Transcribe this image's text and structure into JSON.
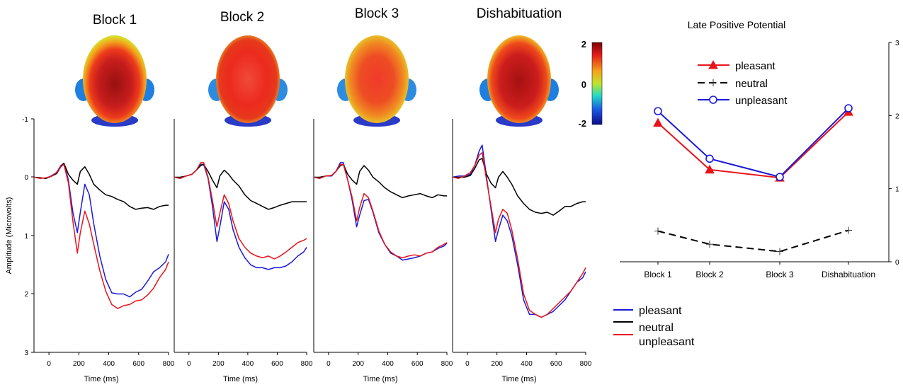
{
  "colors": {
    "blue": "#1a1ad8",
    "black": "#000000",
    "red": "#e8141a",
    "axis": "#000000"
  },
  "colorbar": {
    "ticks": [
      "2",
      "0",
      "-2"
    ]
  },
  "erp": {
    "titles": [
      "Block 1",
      "Block 2",
      "Block 3",
      "Dishabituation"
    ],
    "ylabel": "Amplitude (Microvolts)",
    "xlabel": "Time (ms)",
    "yticks": [
      "-1",
      "0",
      "1",
      "2",
      "3"
    ],
    "xticks": [
      "0",
      "200",
      "400",
      "600",
      "800"
    ],
    "legend": [
      "pleasant",
      "neutral",
      "unpleasant"
    ]
  },
  "chart_data": [
    {
      "type": "line",
      "title": "Block 1",
      "xlabel": "Time (ms)",
      "ylabel": "Amplitude (Microvolts)",
      "xlim": [
        -100,
        800
      ],
      "ylim": [
        -1,
        3
      ],
      "y_inverted": true,
      "series": [
        {
          "name": "pleasant",
          "x": [
            -100,
            -60,
            -20,
            20,
            50,
            80,
            100,
            130,
            160,
            190,
            210,
            240,
            270,
            300,
            340,
            380,
            420,
            460,
            500,
            540,
            580,
            620,
            660,
            700,
            740,
            780,
            800
          ],
          "y": [
            0,
            0.01,
            0.02,
            -0.03,
            -0.08,
            -0.2,
            -0.24,
            0.05,
            0.6,
            0.95,
            0.6,
            0.12,
            0.3,
            0.8,
            1.35,
            1.75,
            1.98,
            2.0,
            2.0,
            2.05,
            1.97,
            1.92,
            1.78,
            1.62,
            1.55,
            1.45,
            1.32
          ]
        },
        {
          "name": "neutral",
          "x": [
            -100,
            -60,
            -20,
            20,
            50,
            80,
            100,
            130,
            160,
            190,
            210,
            240,
            270,
            300,
            340,
            380,
            420,
            460,
            500,
            540,
            580,
            620,
            660,
            700,
            740,
            780,
            800
          ],
          "y": [
            0,
            0.01,
            0.02,
            -0.02,
            -0.06,
            -0.18,
            -0.24,
            -0.05,
            0.05,
            0.12,
            -0.1,
            -0.18,
            -0.05,
            0.12,
            0.22,
            0.3,
            0.33,
            0.38,
            0.42,
            0.5,
            0.55,
            0.53,
            0.52,
            0.55,
            0.5,
            0.48,
            0.48
          ]
        },
        {
          "name": "unpleasant",
          "x": [
            -100,
            -60,
            -20,
            20,
            50,
            80,
            100,
            130,
            160,
            190,
            210,
            240,
            270,
            300,
            340,
            380,
            420,
            460,
            500,
            540,
            580,
            620,
            660,
            700,
            740,
            780,
            800
          ],
          "y": [
            0,
            0.02,
            0.01,
            -0.02,
            -0.08,
            -0.18,
            -0.22,
            0.1,
            0.75,
            1.3,
            0.95,
            0.58,
            0.8,
            1.15,
            1.6,
            1.95,
            2.18,
            2.25,
            2.2,
            2.18,
            2.12,
            2.1,
            2.02,
            1.9,
            1.72,
            1.58,
            1.45
          ]
        }
      ]
    },
    {
      "type": "line",
      "title": "Block 2",
      "xlabel": "Time (ms)",
      "xlim": [
        -100,
        800
      ],
      "ylim": [
        -1,
        3
      ],
      "y_inverted": true,
      "series": [
        {
          "name": "pleasant",
          "x": [
            -100,
            -60,
            -20,
            20,
            50,
            80,
            100,
            130,
            160,
            190,
            210,
            240,
            270,
            300,
            340,
            380,
            420,
            460,
            500,
            540,
            580,
            620,
            660,
            700,
            740,
            780,
            800
          ],
          "y": [
            0,
            0.02,
            -0.02,
            -0.05,
            -0.12,
            -0.22,
            -0.22,
            0.02,
            0.5,
            1.1,
            0.85,
            0.42,
            0.55,
            0.9,
            1.2,
            1.38,
            1.5,
            1.55,
            1.55,
            1.58,
            1.55,
            1.55,
            1.52,
            1.45,
            1.35,
            1.28,
            1.2
          ]
        },
        {
          "name": "neutral",
          "x": [
            -100,
            -60,
            -20,
            20,
            50,
            80,
            100,
            130,
            160,
            190,
            210,
            240,
            270,
            300,
            340,
            380,
            420,
            460,
            500,
            540,
            580,
            620,
            660,
            700,
            740,
            780,
            800
          ],
          "y": [
            0,
            0,
            -0.02,
            -0.05,
            -0.12,
            -0.2,
            -0.22,
            -0.1,
            0.05,
            0.18,
            -0.02,
            -0.12,
            -0.05,
            0.05,
            0.15,
            0.3,
            0.4,
            0.45,
            0.5,
            0.55,
            0.52,
            0.48,
            0.45,
            0.42,
            0.42,
            0.42,
            0.42
          ]
        },
        {
          "name": "unpleasant",
          "x": [
            -100,
            -60,
            -20,
            20,
            50,
            80,
            100,
            130,
            160,
            190,
            210,
            240,
            270,
            300,
            340,
            380,
            420,
            460,
            500,
            540,
            580,
            620,
            660,
            700,
            740,
            780,
            800
          ],
          "y": [
            0,
            0.02,
            -0.02,
            -0.05,
            -0.12,
            -0.25,
            -0.25,
            0,
            0.4,
            0.85,
            0.62,
            0.3,
            0.45,
            0.75,
            1.05,
            1.2,
            1.3,
            1.35,
            1.38,
            1.35,
            1.4,
            1.35,
            1.28,
            1.2,
            1.12,
            1.08,
            1.05
          ]
        }
      ]
    },
    {
      "type": "line",
      "title": "Block 3",
      "xlabel": "Time (ms)",
      "xlim": [
        -100,
        800
      ],
      "ylim": [
        -1,
        3
      ],
      "y_inverted": true,
      "series": [
        {
          "name": "pleasant",
          "x": [
            -100,
            -60,
            -20,
            20,
            50,
            80,
            100,
            130,
            160,
            190,
            210,
            240,
            270,
            300,
            340,
            380,
            420,
            460,
            500,
            540,
            580,
            620,
            660,
            700,
            740,
            780,
            800
          ],
          "y": [
            0,
            0.02,
            -0.02,
            -0.02,
            -0.1,
            -0.25,
            -0.25,
            0.05,
            0.4,
            0.85,
            0.65,
            0.4,
            0.38,
            0.6,
            0.95,
            1.15,
            1.3,
            1.35,
            1.42,
            1.4,
            1.38,
            1.35,
            1.3,
            1.28,
            1.22,
            1.18,
            1.13
          ]
        },
        {
          "name": "neutral",
          "x": [
            -100,
            -60,
            -20,
            20,
            50,
            80,
            100,
            130,
            160,
            190,
            210,
            240,
            270,
            300,
            340,
            380,
            420,
            460,
            500,
            540,
            580,
            620,
            660,
            700,
            740,
            780,
            800
          ],
          "y": [
            0,
            0,
            -0.02,
            -0.03,
            -0.1,
            -0.2,
            -0.22,
            -0.05,
            0.05,
            0.12,
            -0.1,
            -0.2,
            -0.12,
            0,
            0.08,
            0.18,
            0.25,
            0.3,
            0.35,
            0.32,
            0.3,
            0.28,
            0.32,
            0.35,
            0.3,
            0.32,
            0.32
          ]
        },
        {
          "name": "unpleasant",
          "x": [
            -100,
            -60,
            -20,
            20,
            50,
            80,
            100,
            130,
            160,
            190,
            210,
            240,
            270,
            300,
            340,
            380,
            420,
            460,
            500,
            540,
            580,
            620,
            660,
            700,
            740,
            780,
            800
          ],
          "y": [
            0,
            0.02,
            -0.02,
            -0.03,
            -0.1,
            -0.22,
            -0.22,
            0.05,
            0.35,
            0.75,
            0.52,
            0.28,
            0.35,
            0.58,
            0.92,
            1.15,
            1.28,
            1.35,
            1.38,
            1.35,
            1.33,
            1.35,
            1.3,
            1.28,
            1.2,
            1.15,
            1.12
          ]
        }
      ]
    },
    {
      "type": "line",
      "title": "Dishabituation",
      "xlabel": "Time (ms)",
      "xlim": [
        -100,
        800
      ],
      "ylim": [
        -1,
        3
      ],
      "y_inverted": true,
      "series": [
        {
          "name": "pleasant",
          "x": [
            -100,
            -60,
            -20,
            20,
            50,
            80,
            100,
            130,
            160,
            190,
            210,
            240,
            270,
            300,
            340,
            380,
            420,
            460,
            500,
            540,
            580,
            620,
            660,
            700,
            740,
            780,
            800
          ],
          "y": [
            0,
            -0.02,
            -0.02,
            -0.05,
            -0.2,
            -0.45,
            -0.55,
            0,
            0.55,
            1.1,
            0.9,
            0.65,
            0.75,
            1.0,
            1.5,
            2.1,
            2.35,
            2.35,
            2.4,
            2.35,
            2.3,
            2.2,
            2.1,
            1.95,
            1.8,
            1.72,
            1.62
          ]
        },
        {
          "name": "neutral",
          "x": [
            -100,
            -60,
            -20,
            20,
            50,
            80,
            100,
            130,
            160,
            190,
            210,
            240,
            270,
            300,
            340,
            380,
            420,
            460,
            500,
            540,
            580,
            620,
            660,
            700,
            740,
            780,
            800
          ],
          "y": [
            0,
            0,
            0,
            -0.03,
            -0.15,
            -0.3,
            -0.32,
            -0.05,
            0.1,
            0.18,
            0,
            -0.1,
            0,
            0.12,
            0.32,
            0.45,
            0.55,
            0.6,
            0.62,
            0.6,
            0.65,
            0.58,
            0.5,
            0.5,
            0.45,
            0.42,
            0.42
          ]
        },
        {
          "name": "unpleasant",
          "x": [
            -100,
            -60,
            -20,
            20,
            50,
            80,
            100,
            130,
            160,
            190,
            210,
            240,
            270,
            300,
            340,
            380,
            420,
            460,
            500,
            540,
            580,
            620,
            660,
            700,
            740,
            780,
            800
          ],
          "y": [
            0,
            0.02,
            -0.02,
            -0.08,
            -0.2,
            -0.38,
            -0.42,
            0.05,
            0.5,
            0.95,
            0.72,
            0.55,
            0.62,
            0.9,
            1.4,
            2.0,
            2.28,
            2.35,
            2.4,
            2.35,
            2.25,
            2.15,
            2.05,
            1.95,
            1.8,
            1.65,
            1.55
          ]
        }
      ]
    },
    {
      "type": "line",
      "title": "Late Positive Potential",
      "categories": [
        "Block 1",
        "Block 2",
        "Block 3",
        "Dishabituation"
      ],
      "ylim": [
        0,
        3
      ],
      "yticks": [
        "0",
        "1",
        "2",
        "3"
      ],
      "legend_position": "top-left",
      "series": [
        {
          "name": "pleasant",
          "values": [
            1.9,
            1.26,
            1.15,
            2.05
          ]
        },
        {
          "name": "neutral",
          "values": [
            0.42,
            0.24,
            0.14,
            0.43
          ]
        },
        {
          "name": "unpleasant",
          "values": [
            2.06,
            1.41,
            1.16,
            2.1
          ]
        }
      ]
    }
  ]
}
